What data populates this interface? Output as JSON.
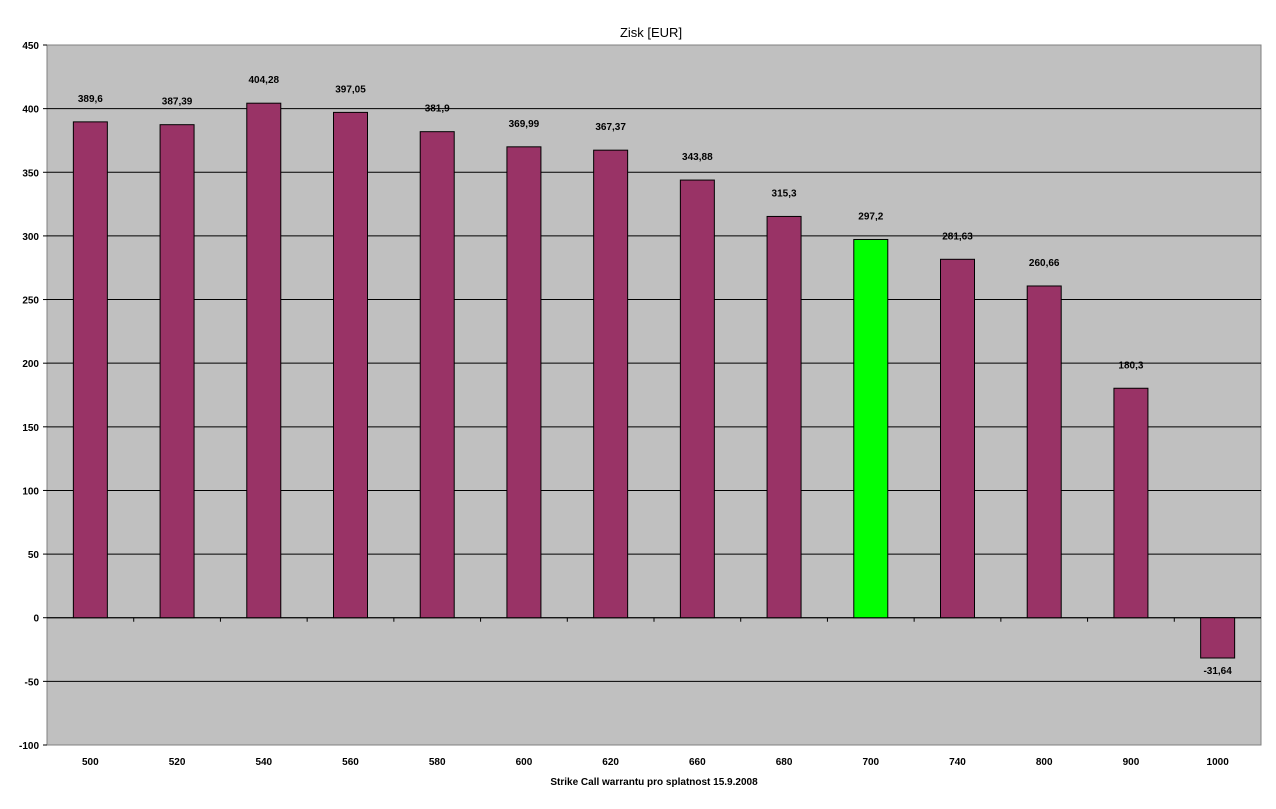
{
  "chart_data": {
    "type": "bar",
    "title": "Zisk [EUR]",
    "xlabel": "Strike Call warrantu pro splatnost 15.9.2008",
    "ylabel": "",
    "ylim": [
      -100,
      450
    ],
    "ytick_step": 50,
    "grid": true,
    "legend": "none",
    "categories": [
      "500",
      "520",
      "540",
      "560",
      "580",
      "600",
      "620",
      "660",
      "680",
      "700",
      "740",
      "800",
      "900",
      "1000"
    ],
    "values": [
      389.6,
      387.39,
      404.28,
      397.05,
      381.9,
      369.99,
      367.37,
      343.88,
      315.3,
      297.2,
      281.63,
      260.66,
      180.3,
      -31.64
    ],
    "value_labels": [
      "389,6",
      "387,39",
      "404,28",
      "397,05",
      "381,9",
      "369,99",
      "367,37",
      "343,88",
      "315,3",
      "297,2",
      "281,63",
      "260,66",
      "180,3",
      "-31,64"
    ],
    "highlight_index": 9,
    "colors": {
      "bar": "#993366",
      "highlight": "#00ff00",
      "plot_background": "#c0c0c0",
      "gridline": "#000000"
    }
  }
}
